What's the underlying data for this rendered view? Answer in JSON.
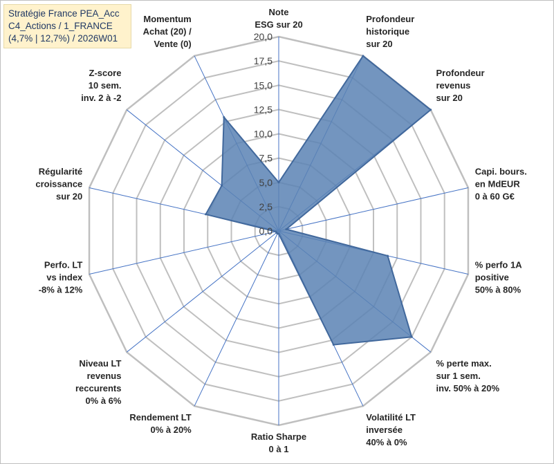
{
  "header": {
    "lines": [
      "Stratégie France PEA_Acc",
      "C4_Actions / 1_FRANCE",
      "(4,7% | 12,7%) / 2026W01"
    ]
  },
  "chart_data": {
    "type": "radar",
    "rmin": 0,
    "rmax": 20,
    "ticks": [
      "0,0",
      "2,5",
      "5,0",
      "7,5",
      "10,0",
      "12,5",
      "15,0",
      "17,5",
      "20,0"
    ],
    "axes": [
      {
        "label": [
          "Note",
          "ESG sur 20"
        ],
        "value": 5.0
      },
      {
        "label": [
          "Profondeur",
          "historique",
          "sur 20"
        ],
        "value": 20.0
      },
      {
        "label": [
          "Profondeur",
          "revenus",
          "sur 20"
        ],
        "value": 20.0
      },
      {
        "label": [
          "Capi. bours.",
          "en MdEUR",
          "0 à 60 G€"
        ],
        "value": 0.8
      },
      {
        "label": [
          "% perfo 1A",
          "positive",
          "50% à 80%"
        ],
        "value": 11.5
      },
      {
        "label": [
          "% perte max.",
          "sur 1 sem.",
          "inv. 50% à 20%"
        ],
        "value": 17.5
      },
      {
        "label": [
          "Volatilité LT",
          "inversée",
          "40% à 0%"
        ],
        "value": 13.0
      },
      {
        "label": [
          "Ratio Sharpe",
          "0 à 1"
        ],
        "value": 0.3
      },
      {
        "label": [
          "Rendement LT",
          "0% à 20%"
        ],
        "value": 0.3
      },
      {
        "label": [
          "Niveau LT",
          "revenus",
          "reccurents",
          "0% à 6%"
        ],
        "value": 0.3
      },
      {
        "label": [
          "Perfo. LT",
          "vs index",
          "-8% à 12%"
        ],
        "value": 0.3
      },
      {
        "label": [
          "Régularité",
          "croissance",
          "sur 20"
        ],
        "value": 7.7
      },
      {
        "label": [
          "Z-score",
          "10 sem.",
          "inv. 2 à -2"
        ],
        "value": 7.5
      },
      {
        "label": [
          "Momentum",
          "Achat (20) /",
          "Vente (0)"
        ],
        "value": 13.0
      }
    ],
    "colors": {
      "fill": "#5b82b4",
      "stroke": "#41689c",
      "grid": "#bfbfbf",
      "spoke": "#4472c4"
    },
    "grid": true,
    "legend": "none"
  }
}
